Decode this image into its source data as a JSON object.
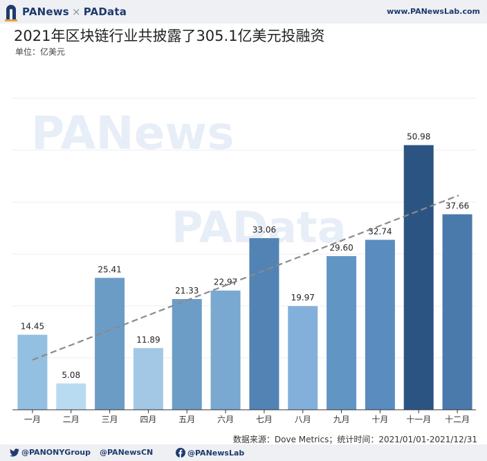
{
  "header": {
    "brand_left": "PANews",
    "brand_sep": "×",
    "brand_right": "PAData",
    "site": "www.PANewsLab.com"
  },
  "watermarks": [
    "PANews",
    "PAData"
  ],
  "chart_data": {
    "type": "bar",
    "title": "2021年区块链行业共披露了305.1亿美元投融资",
    "unit_label": "单位：亿美元",
    "categories": [
      "一月",
      "二月",
      "三月",
      "四月",
      "五月",
      "六月",
      "七月",
      "八月",
      "九月",
      "十月",
      "十一月",
      "十二月"
    ],
    "values": [
      14.45,
      5.08,
      25.41,
      11.89,
      21.33,
      22.97,
      33.06,
      19.97,
      29.6,
      32.74,
      50.98,
      37.66
    ],
    "value_labels": [
      "14.45",
      "5.08",
      "25.41",
      "11.89",
      "21.33",
      "22.97",
      "33.06",
      "19.97",
      "29.60",
      "32.74",
      "50.98",
      "37.66"
    ],
    "bar_colors": [
      "#93bfe0",
      "#b9dbf1",
      "#6b9cc6",
      "#a3c8e6",
      "#6c9dc7",
      "#79a8d0",
      "#5283b4",
      "#82b0da",
      "#6196c4",
      "#5a8cbf",
      "#2c5483",
      "#4a7aab"
    ],
    "ylim": [
      0,
      60
    ],
    "grid": true,
    "trendline": {
      "style": "dashed",
      "color": "#8a8a8a",
      "from_value": 9.6,
      "to_value": 41.3
    }
  },
  "source_text": "数据来源：Dove Metrics；统计时间：2021/01/01-2021/12/31",
  "footer": {
    "twitter": "@PANONYGroup",
    "weibo": "@PANewsCN",
    "facebook": "@PANewsLab"
  }
}
